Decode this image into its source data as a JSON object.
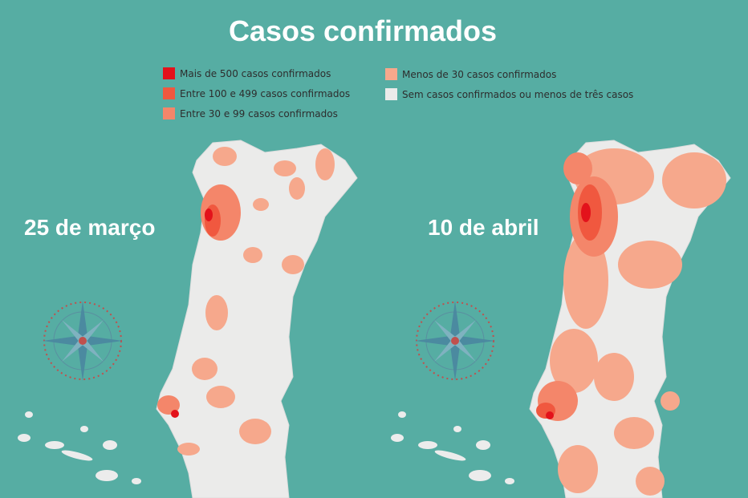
{
  "header": {
    "title": "Casos confirmados"
  },
  "legend": [
    {
      "label": "Mais de 500 casos confirmados",
      "color": "#e3121b"
    },
    {
      "label": "Entre 100 e 499 casos confirmados",
      "color": "#f0583f"
    },
    {
      "label": "Entre 30 e 99 casos confirmados",
      "color": "#f4866a"
    },
    {
      "label": "Menos de 30 casos confirmados",
      "color": "#f6a88c"
    },
    {
      "label": "Sem casos confirmados ou menos de três casos",
      "color": "#ebebea"
    }
  ],
  "maps": [
    {
      "label": "25 de março"
    },
    {
      "label": "10 de abril"
    }
  ]
}
